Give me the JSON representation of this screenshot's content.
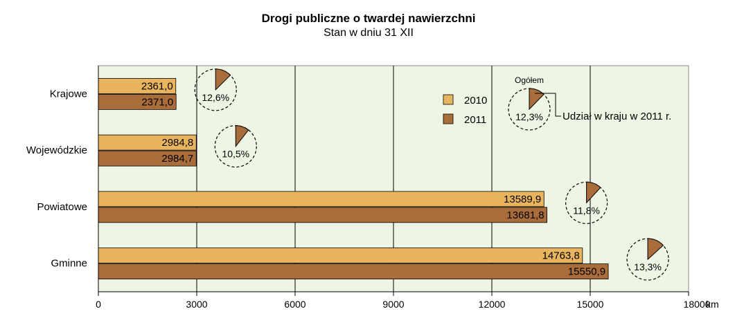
{
  "chart_data": {
    "type": "bar",
    "title": "Drogi publiczne o twardej nawierzchni",
    "subtitle": "Stan w dniu 31 XII",
    "categories": [
      "Krajowe",
      "Wojewódzkie",
      "Powiatowe",
      "Gminne"
    ],
    "series": [
      {
        "name": "2010",
        "values": [
          2361.0,
          2984.8,
          13589.9,
          14763.8
        ],
        "labels": [
          "2361,0",
          "2984,8",
          "13589,9",
          "14763,8"
        ],
        "color": "#E8B55E"
      },
      {
        "name": "2011",
        "values": [
          2371.0,
          2984.7,
          13681.8,
          15550.9
        ],
        "labels": [
          "2371,0",
          "2984,7",
          "13681,8",
          "15550,9"
        ],
        "color": "#A86D3A"
      }
    ],
    "shares": {
      "values": [
        12.6,
        10.5,
        11.8,
        13.3
      ],
      "labels": [
        "12,6%",
        "10,5%",
        "11,8%",
        "13,3%"
      ]
    },
    "total_share": {
      "value": 12.3,
      "label": "12,3%",
      "caption": "Ogółem"
    },
    "share_note": "Udział w kraju w 2011 r.",
    "xlim": [
      0,
      18000
    ],
    "xticks": [
      "0",
      "3000",
      "6000",
      "9000",
      "12000",
      "15000",
      "18000"
    ],
    "xunit": "km",
    "grid": true,
    "legend_position": "top-right",
    "colors": {
      "plot_bg": "#EEF5E4",
      "pie_fill": "#A86D3A"
    }
  }
}
